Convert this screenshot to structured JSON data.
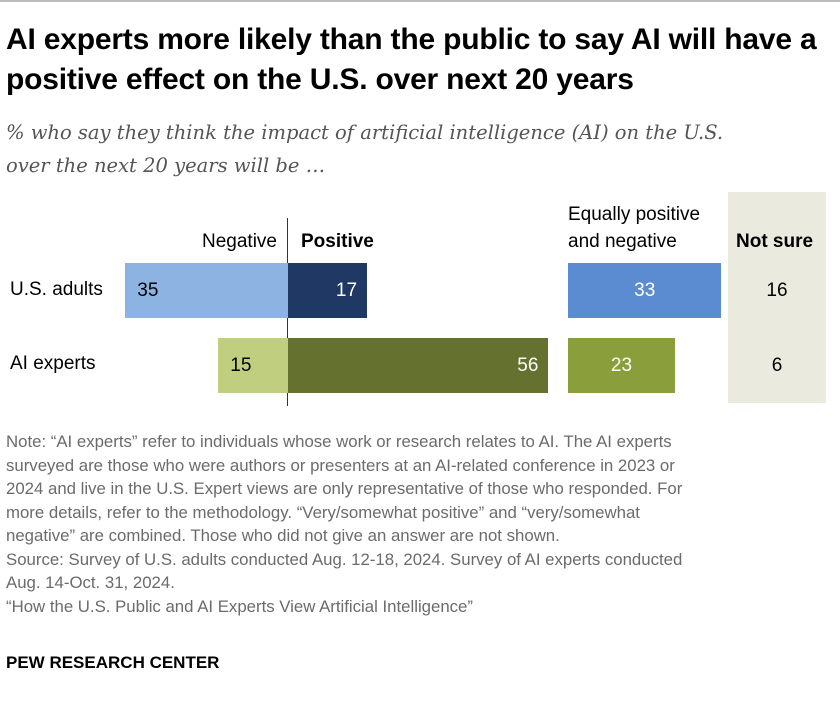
{
  "title": "AI experts more likely than the public to say AI will have a positive effect on the U.S. over next 20 years",
  "subtitle_lines": [
    "% who say they think the impact of artificial intelligence (AI) on the U.S.",
    "over the next 20 years will be …"
  ],
  "chart_data": {
    "type": "bar",
    "orientation": "horizontal diverging",
    "categories": [
      "U.S. adults",
      "AI experts"
    ],
    "series": [
      {
        "name": "Negative",
        "values": [
          35,
          15
        ],
        "colors": [
          "#8db3e2",
          "#bfcf7f"
        ]
      },
      {
        "name": "Positive",
        "values": [
          17,
          56
        ],
        "colors": [
          "#203864",
          "#64712f"
        ]
      },
      {
        "name": "Equally positive and negative",
        "values": [
          33,
          23
        ],
        "colors": [
          "#5b8bd0",
          "#8a9e3b"
        ]
      },
      {
        "name": "Not sure",
        "values": [
          16,
          6
        ]
      }
    ],
    "headers": {
      "negative": "Negative",
      "positive": "Positive",
      "equal_1": "Equally positive",
      "equal_2": "and negative",
      "not_sure": "Not sure"
    }
  },
  "notes_lines": [
    "Note: “AI experts” refer to individuals whose work or research relates to AI. The AI experts",
    "surveyed are those who were authors or presenters at an AI-related conference in 2023 or",
    "2024 and live in the U.S. Expert views are only representative of those who responded. For",
    "more details, refer to the methodology. “Very/somewhat positive” and “very/somewhat",
    "negative” are combined. Those who did not give an answer are not shown.",
    "Source: Survey of U.S. adults conducted Aug. 12-18, 2024. Survey of AI experts conducted",
    "Aug. 14-Oct. 31, 2024.",
    "“How the U.S. Public and AI Experts View Artificial Intelligence”"
  ],
  "source_org": "PEW RESEARCH CENTER"
}
